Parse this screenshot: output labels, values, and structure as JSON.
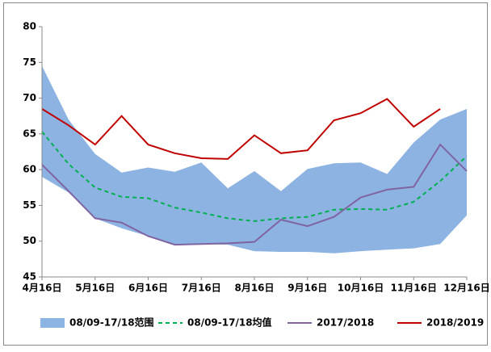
{
  "chart_data": {
    "type": "line",
    "categories": [
      "4月16日",
      null,
      "5月16日",
      null,
      "6月16日",
      null,
      "7月16日",
      null,
      "8月16日",
      null,
      "9月16日",
      null,
      "10月16日",
      null,
      "11月16日",
      null,
      "12月16日"
    ],
    "ylim": [
      45,
      80
    ],
    "yticks": [
      45,
      50,
      55,
      60,
      65,
      70,
      75,
      80
    ],
    "series": [
      {
        "name": "08/09-17/18范围",
        "kind": "range",
        "color": "#8db3e2",
        "upper": [
          74.5,
          67,
          62.2,
          59.6,
          60.3,
          59.7,
          61,
          57.4,
          59.8,
          57,
          60.1,
          60.9,
          61,
          59.4,
          63.8,
          67,
          68.5
        ],
        "lower": [
          59,
          56.8,
          53.2,
          51.8,
          50.7,
          49.4,
          49.6,
          49.5,
          48.6,
          48.5,
          48.5,
          48.3,
          48.6,
          48.8,
          49,
          49.6,
          53.6
        ]
      },
      {
        "name": "08/09-17/18均值",
        "kind": "dashed",
        "color": "#00b050",
        "values": [
          65.3,
          60.8,
          57.5,
          56.2,
          56,
          54.7,
          54,
          53.2,
          52.8,
          53.2,
          53.4,
          54.4,
          54.5,
          54.4,
          55.5,
          58.4,
          61.9
        ]
      },
      {
        "name": "2017/2018",
        "kind": "line",
        "color": "#8064a2",
        "values": [
          60.7,
          57,
          53.2,
          52.6,
          50.7,
          49.5,
          49.6,
          49.7,
          49.9,
          53,
          52.1,
          53.4,
          56.1,
          57.2,
          57.6,
          63.5,
          59.8
        ]
      },
      {
        "name": "2018/2019",
        "kind": "line",
        "color": "#c00000",
        "values": [
          68.5,
          66.2,
          63.5,
          67.5,
          63.5,
          62.3,
          61.6,
          61.5,
          64.8,
          62.3,
          62.7,
          66.9,
          67.9,
          69.9,
          66,
          68.5,
          null
        ]
      }
    ]
  }
}
